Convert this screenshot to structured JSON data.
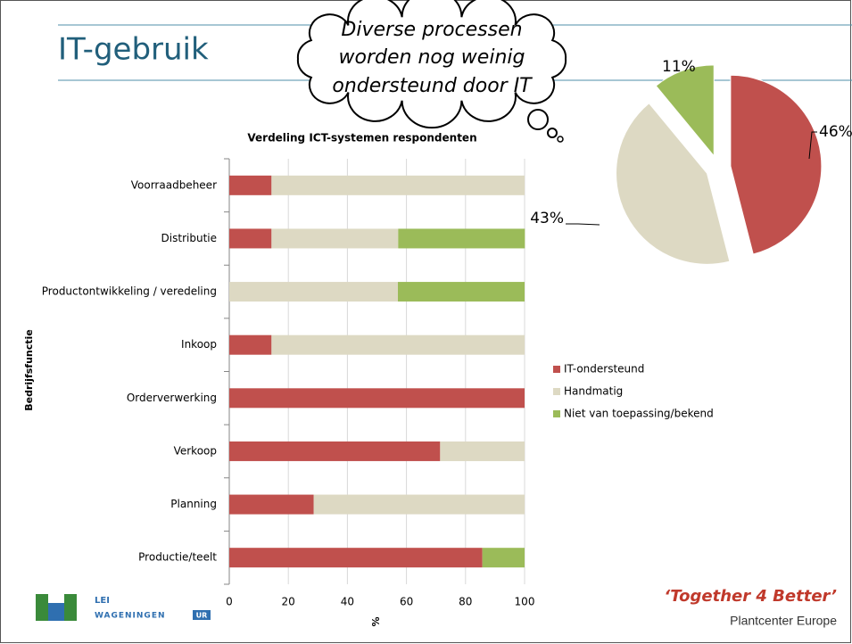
{
  "slide": {
    "title": "IT-gebruik",
    "callout": [
      "Diverse processen",
      "worden nog weinig",
      "ondersteund door IT"
    ],
    "logo": {
      "name": "LEI",
      "org": "WAGENINGEN",
      "suffix": "UR"
    },
    "tagline": "‘Together 4 Better’",
    "footer": "Plantcenter Europe"
  },
  "chart_data": [
    {
      "type": "bar",
      "orientation": "horizontal",
      "stacked": true,
      "title": "Verdeling ICT-systemen respondenten",
      "x_label": "%",
      "y_label": "Bedrijfsfunctie",
      "categories": [
        "Voorraadbeheer",
        "Distributie",
        "Productontwikkeling / veredeling",
        "Inkoop",
        "Orderverwerking",
        "Verkoop",
        "Planning",
        "Productie/teelt"
      ],
      "series": [
        {
          "name": "IT-ondersteund",
          "color": "#c0504d",
          "values": [
            14.3,
            14.3,
            0,
            14.3,
            100,
            71.4,
            28.6,
            85.7
          ]
        },
        {
          "name": "Handmatig",
          "color": "#ddd9c3",
          "values": [
            85.7,
            42.9,
            57.1,
            85.7,
            0,
            28.6,
            71.4,
            0
          ]
        },
        {
          "name": "Niet van toepassing/bekend",
          "color": "#9bbb59",
          "values": [
            0,
            42.9,
            42.9,
            0,
            0,
            0,
            0,
            14.3
          ]
        }
      ],
      "xlim": [
        0,
        100
      ],
      "xticks": [
        0,
        20,
        40,
        60,
        80,
        100
      ],
      "grid": true,
      "legend": "right"
    },
    {
      "type": "pie",
      "values": [
        46,
        43,
        11
      ],
      "value_labels": [
        "46%",
        "43%",
        "11%"
      ],
      "colors": [
        "#c0504d",
        "#ddd9c3",
        "#9bbb59"
      ],
      "exploded": true
    }
  ]
}
